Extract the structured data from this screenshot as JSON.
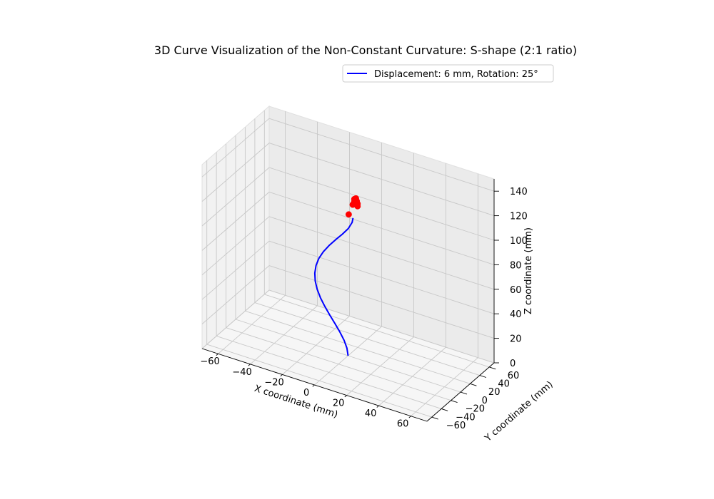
{
  "chart_data": {
    "type": "line3d",
    "title": "3D Curve Visualization of the Non-Constant Curvature: S-shape (2:1 ratio)",
    "xlabel": "X coordinate (mm)",
    "ylabel": "Y coordinate (mm)",
    "zlabel": "Z coordinate (mm)",
    "xlim": [
      -70,
      70
    ],
    "ylim": [
      -70,
      70
    ],
    "zlim": [
      0,
      150
    ],
    "xticks": [
      -60,
      -40,
      -20,
      0,
      20,
      40,
      60
    ],
    "yticks": [
      -60,
      -40,
      -20,
      0,
      20,
      40,
      60
    ],
    "zticks": [
      0,
      20,
      40,
      60,
      80,
      100,
      120,
      140
    ],
    "grid": true,
    "legend_position": "top-right",
    "series": [
      {
        "name": "Displacement: 6 mm, Rotation: 25°",
        "color": "#0000ff",
        "x": [
          0,
          -0.6,
          -2.2,
          -4.5,
          -7.3,
          -10.3,
          -13.2,
          -15.8,
          -17.9,
          -19.3,
          -19.8,
          -19.4,
          -18.0,
          -15.6,
          -12.4,
          -8.6,
          -4.6,
          -1.0,
          1.4,
          2.0
        ],
        "y": [
          0,
          -0.3,
          -1.0,
          -1.9,
          -2.8,
          -3.6,
          -4.2,
          -4.5,
          -4.4,
          -3.9,
          -3.0,
          -1.9,
          -0.6,
          0.7,
          1.9,
          2.9,
          3.5,
          3.8,
          3.8,
          3.5
        ],
        "z": [
          0,
          6,
          12,
          18,
          24,
          30,
          36,
          42,
          48,
          54,
          60,
          66,
          72,
          78,
          84,
          90,
          96,
          102,
          108,
          112
        ]
      }
    ],
    "markers": {
      "color": "#ff0000",
      "points": [
        {
          "x": -0.5,
          "y": 3.0,
          "z": 114
        },
        {
          "x": 2.0,
          "y": 3.0,
          "z": 123
        },
        {
          "x": 4.0,
          "y": 3.0,
          "z": 124
        },
        {
          "x": 3.0,
          "y": 3.0,
          "z": 126
        },
        {
          "x": 5.0,
          "y": 3.0,
          "z": 125
        },
        {
          "x": 3.5,
          "y": 3.0,
          "z": 128
        },
        {
          "x": 4.5,
          "y": 3.0,
          "z": 127
        },
        {
          "x": 2.5,
          "y": 3.0,
          "z": 124
        },
        {
          "x": 4.0,
          "y": 3.0,
          "z": 129
        },
        {
          "x": 3.0,
          "y": 3.0,
          "z": 128
        },
        {
          "x": 5.0,
          "y": 3.0,
          "z": 123
        }
      ]
    }
  }
}
